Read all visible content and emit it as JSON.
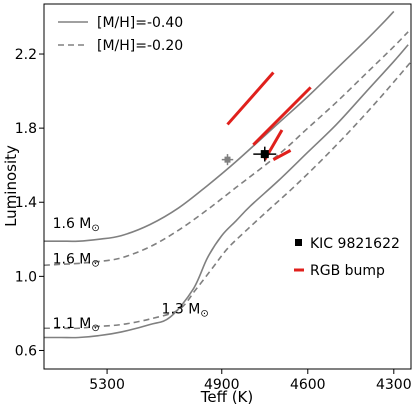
{
  "chart_data": {
    "type": "line",
    "xlabel": "Teff (K)",
    "ylabel": "Luminosity",
    "x_reversed": true,
    "xlim": [
      5520,
      4240
    ],
    "ylim": [
      0.5,
      2.47
    ],
    "xticks": [
      5300,
      4900,
      4600,
      4300
    ],
    "yticks": [
      0.6,
      1.0,
      1.4,
      1.8,
      2.2
    ],
    "colors": {
      "track": "#808080",
      "bump": "#e0201c",
      "star": "#000000",
      "star2": "#808080"
    },
    "legend": {
      "position": "top-left",
      "entries": [
        {
          "label": "[M/H]=-0.40",
          "style": "solid"
        },
        {
          "label": "[M/H]=-0.20",
          "style": "dashed"
        }
      ]
    },
    "legend2": {
      "position": "center-right",
      "entries": [
        {
          "label": "KIC 9821622",
          "marker": "square"
        },
        {
          "label": "RGB bump",
          "marker": "red-line"
        }
      ]
    },
    "series": [
      {
        "points": [
          [
            5520,
            1.19
          ],
          [
            5460,
            1.19
          ],
          [
            5400,
            1.19
          ],
          [
            5330,
            1.2
          ],
          [
            5250,
            1.22
          ],
          [
            5150,
            1.28
          ],
          [
            5050,
            1.37
          ],
          [
            4950,
            1.49
          ],
          [
            4850,
            1.62
          ],
          [
            4700,
            1.83
          ],
          [
            4600,
            1.97
          ],
          [
            4500,
            2.12
          ],
          [
            4400,
            2.27
          ],
          [
            4330,
            2.38
          ],
          [
            4300,
            2.43
          ]
        ]
      },
      {
        "points": [
          [
            5520,
            1.06
          ],
          [
            5460,
            1.065
          ],
          [
            5400,
            1.07
          ],
          [
            5330,
            1.08
          ],
          [
            5250,
            1.1
          ],
          [
            5150,
            1.16
          ],
          [
            5050,
            1.25
          ],
          [
            4950,
            1.36
          ],
          [
            4850,
            1.48
          ],
          [
            4700,
            1.66
          ],
          [
            4600,
            1.8
          ],
          [
            4500,
            1.94
          ],
          [
            4400,
            2.09
          ],
          [
            4300,
            2.24
          ],
          [
            4250,
            2.32
          ]
        ]
      },
      {
        "points": [
          [
            5520,
            0.67
          ],
          [
            5460,
            0.67
          ],
          [
            5400,
            0.67
          ],
          [
            5330,
            0.68
          ],
          [
            5250,
            0.7
          ],
          [
            5150,
            0.74
          ],
          [
            5080,
            0.78
          ],
          [
            5000,
            0.93
          ],
          [
            4950,
            1.1
          ],
          [
            4900,
            1.22
          ],
          [
            4850,
            1.3
          ],
          [
            4800,
            1.38
          ],
          [
            4700,
            1.52
          ],
          [
            4600,
            1.67
          ],
          [
            4500,
            1.82
          ],
          [
            4400,
            1.99
          ],
          [
            4300,
            2.16
          ],
          [
            4250,
            2.25
          ]
        ]
      },
      {
        "points": [
          [
            5520,
            0.72
          ],
          [
            5460,
            0.72
          ],
          [
            5400,
            0.72
          ],
          [
            5330,
            0.73
          ],
          [
            5250,
            0.74
          ],
          [
            5150,
            0.77
          ],
          [
            5050,
            0.82
          ],
          [
            4990,
            0.93
          ],
          [
            4930,
            1.05
          ],
          [
            4880,
            1.15
          ],
          [
            4820,
            1.24
          ],
          [
            4750,
            1.34
          ],
          [
            4650,
            1.48
          ],
          [
            4550,
            1.63
          ],
          [
            4450,
            1.79
          ],
          [
            4350,
            1.96
          ],
          [
            4250,
            2.14
          ],
          [
            4240,
            2.16
          ]
        ]
      }
    ],
    "rgb_bumps": [
      [
        [
          4880,
          1.82
        ],
        [
          4720,
          2.1
        ]
      ],
      [
        [
          4790,
          1.71
        ],
        [
          4590,
          2.02
        ]
      ],
      [
        [
          4750,
          1.63
        ],
        [
          4690,
          1.79
        ]
      ],
      [
        [
          4720,
          1.63
        ],
        [
          4660,
          1.68
        ]
      ]
    ],
    "stars": [
      {
        "name": "KIC 9821622",
        "teff": 4750,
        "lum": 1.66,
        "teff_err": 40,
        "lum_err": 0.04,
        "color": "star"
      },
      {
        "teff": 4880,
        "lum": 1.63,
        "teff_err": 20,
        "lum_err": 0.03,
        "color": "star2"
      }
    ],
    "annotations": [
      {
        "text": "1.6 M",
        "sub": "⊙",
        "teff": 5490,
        "lum": 1.26
      },
      {
        "text": "1.6 M",
        "sub": "⊙",
        "teff": 5490,
        "lum": 1.07
      },
      {
        "text": "1.1 M",
        "sub": "⊙",
        "teff": 5490,
        "lum": 0.72
      },
      {
        "text": "1.3 M",
        "sub": "⊙",
        "teff": 5110,
        "lum": 0.8
      }
    ]
  }
}
